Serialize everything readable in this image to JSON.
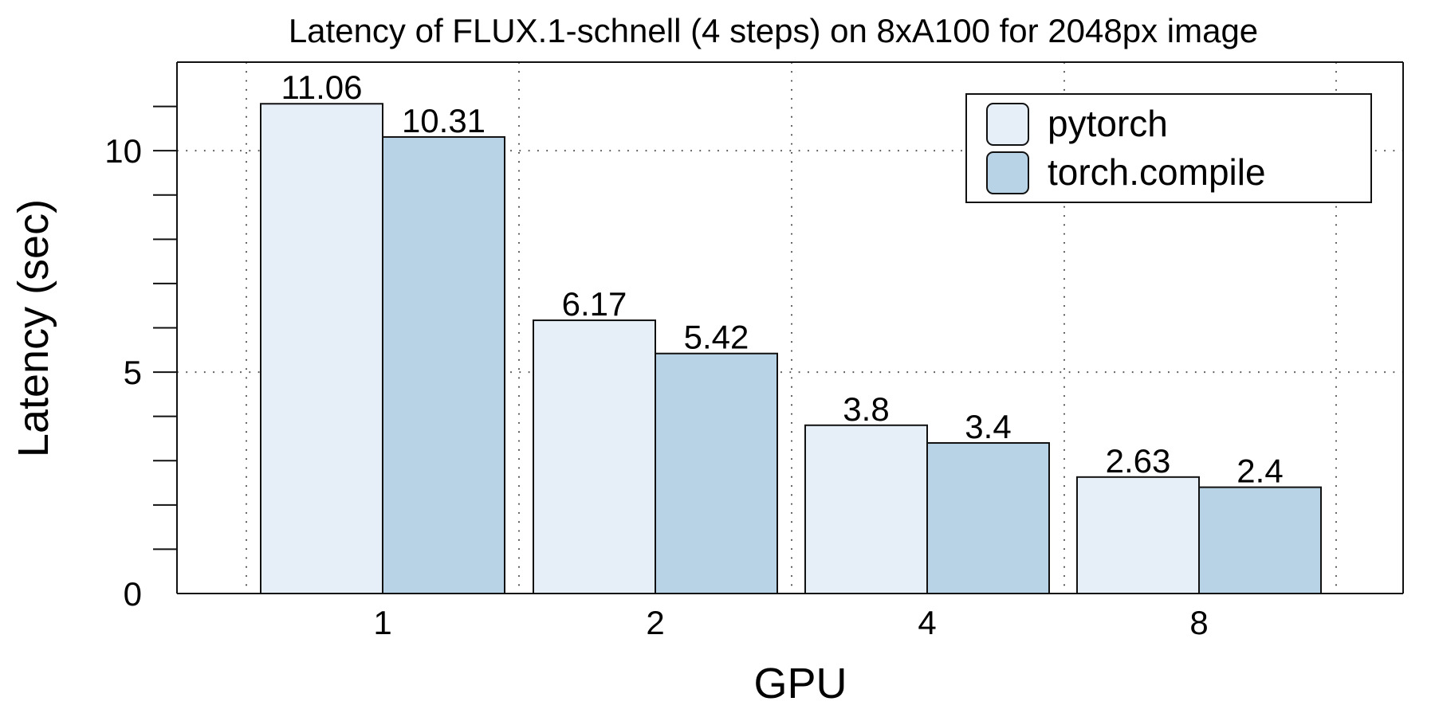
{
  "chart_data": {
    "type": "bar",
    "title": "Latency of FLUX.1-schnell (4 steps) on 8xA100 for 2048px image",
    "xlabel": "GPU",
    "ylabel": "Latency (sec)",
    "categories": [
      "1",
      "2",
      "4",
      "8"
    ],
    "series": [
      {
        "name": "pytorch",
        "color": "#e6eef8",
        "values": [
          11.06,
          6.17,
          3.8,
          2.63
        ],
        "labels": [
          "11.06",
          "6.17",
          "3.8",
          "2.63"
        ]
      },
      {
        "name": "torch.compile",
        "color": "#b8d3e6",
        "values": [
          10.31,
          5.42,
          3.4,
          2.4
        ],
        "labels": [
          "10.31",
          "5.42",
          "3.4",
          "2.4"
        ]
      }
    ],
    "ylim": [
      0,
      12
    ],
    "yticks": [
      0,
      5,
      10
    ],
    "ytick_labels": [
      "0",
      "5",
      "10"
    ],
    "grid": true,
    "legend_position": "top-right"
  }
}
